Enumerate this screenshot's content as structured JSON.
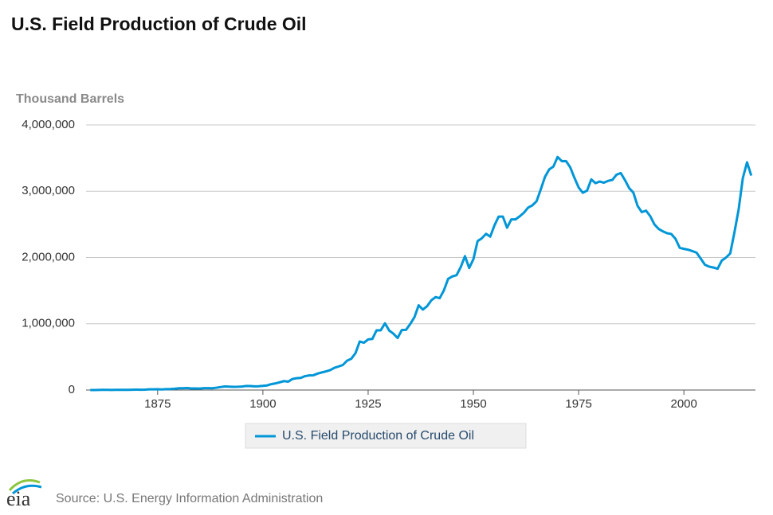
{
  "chart_data": {
    "type": "line",
    "title": "U.S. Field Production of Crude Oil",
    "y_axis_label": "Thousand Barrels",
    "source": "Source: U.S. Energy Information Administration",
    "logo": "eia",
    "x": [
      1859,
      1860,
      1861,
      1862,
      1863,
      1864,
      1865,
      1866,
      1867,
      1868,
      1869,
      1870,
      1871,
      1872,
      1873,
      1874,
      1875,
      1876,
      1877,
      1878,
      1879,
      1880,
      1881,
      1882,
      1883,
      1884,
      1885,
      1886,
      1887,
      1888,
      1889,
      1890,
      1891,
      1892,
      1893,
      1894,
      1895,
      1896,
      1897,
      1898,
      1899,
      1900,
      1901,
      1902,
      1903,
      1904,
      1905,
      1906,
      1907,
      1908,
      1909,
      1910,
      1911,
      1912,
      1913,
      1914,
      1915,
      1916,
      1917,
      1918,
      1919,
      1920,
      1921,
      1922,
      1923,
      1924,
      1925,
      1926,
      1927,
      1928,
      1929,
      1930,
      1931,
      1932,
      1933,
      1934,
      1935,
      1936,
      1937,
      1938,
      1939,
      1940,
      1941,
      1942,
      1943,
      1944,
      1945,
      1946,
      1947,
      1948,
      1949,
      1950,
      1951,
      1952,
      1953,
      1954,
      1955,
      1956,
      1957,
      1958,
      1959,
      1960,
      1961,
      1962,
      1963,
      1964,
      1965,
      1966,
      1967,
      1968,
      1969,
      1970,
      1971,
      1972,
      1973,
      1974,
      1975,
      1976,
      1977,
      1978,
      1979,
      1980,
      1981,
      1982,
      1983,
      1984,
      1985,
      1986,
      1987,
      1988,
      1989,
      1990,
      1991,
      1992,
      1993,
      1994,
      1995,
      1996,
      1997,
      1998,
      1999,
      2000,
      2001,
      2002,
      2003,
      2004,
      2005,
      2006,
      2007,
      2008,
      2009,
      2010,
      2011,
      2012,
      2013,
      2014,
      2015,
      2016
    ],
    "series": [
      {
        "name": "U.S. Field Production of Crude Oil",
        "color": "#0096d7",
        "values": [
          2,
          500,
          2114,
          3057,
          2611,
          2116,
          2498,
          3598,
          3347,
          3646,
          4215,
          5261,
          5205,
          6293,
          9894,
          10927,
          12163,
          9133,
          13350,
          15397,
          19914,
          26286,
          27661,
          30350,
          23450,
          24218,
          21859,
          28065,
          28283,
          27612,
          35164,
          45824,
          54293,
          50515,
          48431,
          49344,
          52892,
          60960,
          60476,
          55364,
          57071,
          63621,
          69389,
          88767,
          100461,
          117081,
          134717,
          126494,
          166095,
          178527,
          183171,
          209557,
          220449,
          222935,
          248446,
          265763,
          281104,
          300767,
          335316,
          355928,
          378367,
          442929,
          472183,
          557531,
          732407,
          713940,
          763743,
          770874,
          901129,
          901474,
          1007323,
          898011,
          851081,
          785159,
          905656,
          908065,
          996596,
          1099687,
          1279160,
          1214355,
          1264962,
          1353214,
          1402228,
          1386645,
          1505613,
          1677904,
          1713655,
          1733939,
          1856987,
          2020185,
          1841940,
          1973574,
          2247711,
          2289836,
          2357082,
          2314988,
          2484428,
          2617283,
          2616901,
          2448987,
          2574590,
          2574933,
          2621758,
          2676189,
          2752723,
          2786822,
          2848514,
          3027763,
          3215742,
          3329042,
          3371751,
          3517450,
          3453914,
          3455368,
          3360903,
          3202585,
          3056779,
          2976180,
          3009265,
          3178216,
          3121310,
          3146365,
          3128624,
          3156715,
          3170999,
          3249696,
          3274553,
          3168252,
          3047378,
          2979123,
          2778773,
          2684687,
          2707039,
          2624632,
          2499033,
          2431476,
          2394268,
          2366017,
          2354831,
          2281919,
          2146732,
          2130707,
          2117511,
          2097124,
          2073453,
          1983300,
          1890106,
          1862259,
          1848450,
          1830029,
          1953476,
          1999306,
          2060338,
          2377337,
          2724050,
          3199394,
          3436326,
          3236625
        ]
      }
    ],
    "xlim": [
      1858,
      2017
    ],
    "xticks": [
      1875,
      1900,
      1925,
      1950,
      1975,
      2000
    ],
    "ylim": [
      0,
      4000000
    ],
    "yticks": [
      0,
      {
        "value": 1000000,
        "label": "1,000,000"
      },
      {
        "value": 2000000,
        "label": "2,000,000"
      },
      {
        "value": 3000000,
        "label": "3,000,000"
      },
      {
        "value": 4000000,
        "label": "4,000,000"
      }
    ],
    "grid": true,
    "legend": "bottom"
  }
}
